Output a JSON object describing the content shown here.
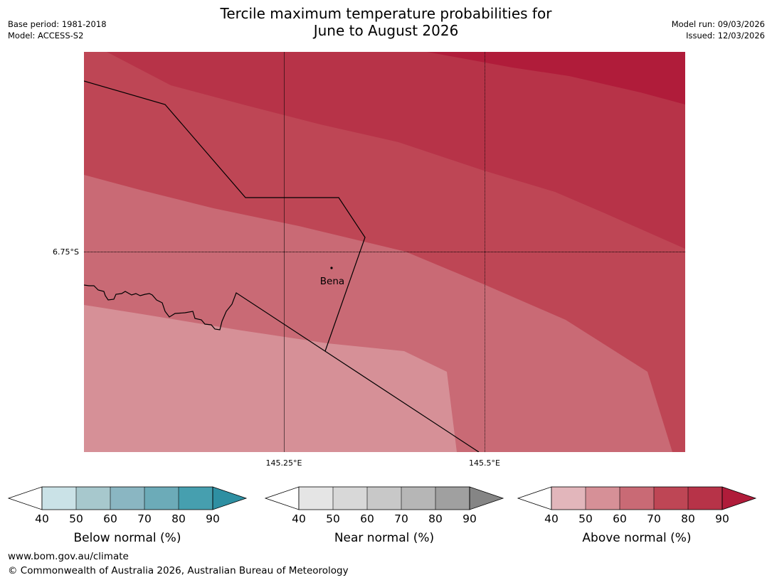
{
  "header": {
    "title_line1": "Tercile maximum temperature probabilities for",
    "title_line2": "June to August 2026",
    "base_period": "Base period: 1981-2018",
    "model": "Model: ACCESS-S2",
    "model_run": "Model run: 09/03/2026",
    "issued": "Issued: 12/03/2026"
  },
  "map": {
    "latitude_labels": [
      "6.75°S"
    ],
    "longitude_labels": [
      "145.25°E",
      "145.5°E"
    ],
    "place_label": "Bena",
    "colors": {
      "above_50_60": "#d69097",
      "above_60_70": "#c96a75",
      "above_70_80": "#be4655",
      "above_80_90": "#b73348",
      "above_90": "#b01c3a"
    }
  },
  "legends": [
    {
      "label": "Below normal (%)",
      "ticks": [
        "40",
        "50",
        "60",
        "70",
        "80",
        "90"
      ],
      "colors": [
        "#cae2e7",
        "#a7c8cd",
        "#8ab6c2",
        "#6cabb8",
        "#469faf",
        "#2e8fa2"
      ]
    },
    {
      "label": "Near normal (%)",
      "ticks": [
        "40",
        "50",
        "60",
        "70",
        "80",
        "90"
      ],
      "colors": [
        "#e5e5e5",
        "#d8d8d8",
        "#c8c8c8",
        "#b6b6b6",
        "#a0a0a0",
        "#858585"
      ]
    },
    {
      "label": "Above normal (%)",
      "ticks": [
        "40",
        "50",
        "60",
        "70",
        "80",
        "90"
      ],
      "colors": [
        "#e2b6bb",
        "#d69097",
        "#c96a75",
        "#be4655",
        "#b73348",
        "#b01c3a"
      ]
    }
  ],
  "footer": {
    "url": "www.bom.gov.au/climate",
    "copyright": "© Commonwealth of Australia 2026, Australian Bureau of Meteorology"
  }
}
